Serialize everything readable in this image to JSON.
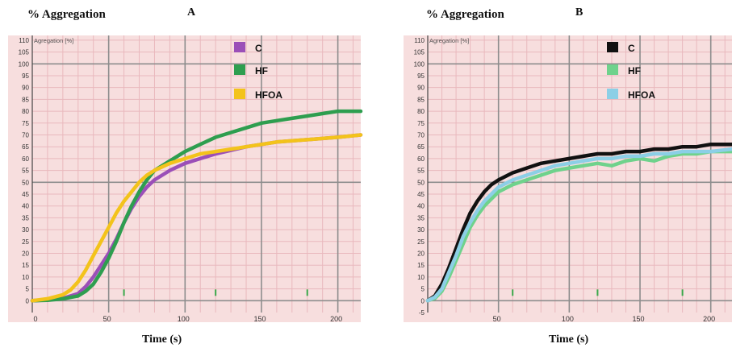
{
  "panels": [
    {
      "letter": "A",
      "ylabel_title": "% Aggregation",
      "xlabel": "Time (s)"
    },
    {
      "letter": "B",
      "ylabel_title": "% Aggregation",
      "xlabel": "Time (s)"
    }
  ],
  "colors": {
    "plot_bg": "#f7dede",
    "grid_major": "#8d8d8d",
    "grid_minor": "#e9b8bd",
    "tick_mark": "#3aa84a"
  },
  "chart_data": [
    {
      "type": "line",
      "inner_label": "Agregation [%]",
      "xlim": [
        0,
        215
      ],
      "ylim": [
        -5,
        112
      ],
      "xticks": [
        0,
        50,
        100,
        150,
        200
      ],
      "xtick_labels": [
        "0",
        "50",
        "100",
        "150",
        "200"
      ],
      "yticks": [
        110,
        105,
        100,
        95,
        90,
        85,
        80,
        75,
        70,
        65,
        60,
        55,
        50,
        45,
        40,
        35,
        30,
        25,
        20,
        15,
        10,
        5,
        0
      ],
      "ytick_labels": [
        "110",
        "105",
        "100",
        "95",
        "90",
        "85",
        "80",
        "75",
        "70",
        "65",
        "60",
        "55",
        "50",
        "45",
        "40",
        "35",
        "30",
        "25",
        "20",
        "15",
        "10",
        "5",
        "0"
      ],
      "grid": true,
      "legend_position": "top-center",
      "series": [
        {
          "name": "C",
          "color": "#9b4fb8",
          "x": [
            0,
            10,
            20,
            30,
            35,
            40,
            45,
            50,
            55,
            60,
            65,
            70,
            75,
            80,
            90,
            100,
            110,
            120,
            140,
            160,
            180,
            200,
            215
          ],
          "y": [
            0,
            0.3,
            1,
            3,
            6,
            10,
            15,
            20,
            26,
            33,
            39,
            44,
            48,
            51,
            55,
            58,
            60,
            62,
            65,
            67,
            68,
            69,
            70
          ]
        },
        {
          "name": "HF",
          "color": "#2e9e4f",
          "x": [
            0,
            10,
            20,
            30,
            35,
            40,
            45,
            50,
            55,
            60,
            65,
            70,
            75,
            80,
            90,
            100,
            110,
            120,
            130,
            140,
            150,
            160,
            170,
            180,
            190,
            200,
            215
          ],
          "y": [
            0,
            0.2,
            0.8,
            2,
            4,
            7,
            12,
            18,
            25,
            33,
            40,
            46,
            51,
            55,
            59,
            63,
            66,
            69,
            71,
            73,
            75,
            76,
            77,
            78,
            79,
            80,
            80
          ]
        },
        {
          "name": "HFOA",
          "color": "#f3c31b",
          "x": [
            0,
            10,
            20,
            25,
            30,
            35,
            40,
            45,
            50,
            55,
            60,
            65,
            70,
            75,
            80,
            90,
            100,
            110,
            120,
            140,
            160,
            180,
            200,
            215
          ],
          "y": [
            0,
            0.8,
            2.5,
            4.5,
            8,
            13,
            19,
            25,
            31,
            37,
            42,
            46,
            50,
            53,
            55,
            58,
            60,
            62,
            63,
            65,
            67,
            68,
            69,
            70
          ]
        }
      ]
    },
    {
      "type": "line",
      "inner_label": "Agregation [%]",
      "xlim": [
        0,
        215
      ],
      "ylim": [
        -5,
        112
      ],
      "xticks": [
        0,
        50,
        100,
        150,
        200
      ],
      "xtick_labels": [
        "",
        "50",
        "100",
        "150",
        "200"
      ],
      "yticks": [
        110,
        105,
        100,
        95,
        90,
        85,
        80,
        75,
        70,
        65,
        60,
        55,
        50,
        45,
        40,
        35,
        30,
        25,
        20,
        15,
        10,
        5,
        0,
        -5
      ],
      "ytick_labels": [
        "110",
        "105",
        "100",
        "95",
        "90",
        "85",
        "80",
        "75",
        "70",
        "65",
        "60",
        "55",
        "50",
        "45",
        "40",
        "35",
        "30",
        "25",
        "20",
        "15",
        "10",
        "5",
        "0",
        "-5"
      ],
      "grid": true,
      "legend_position": "top-center",
      "series": [
        {
          "name": "C",
          "color": "#111111",
          "x": [
            0,
            5,
            10,
            15,
            20,
            25,
            30,
            35,
            40,
            45,
            50,
            60,
            70,
            80,
            90,
            100,
            110,
            120,
            130,
            140,
            150,
            160,
            170,
            180,
            190,
            200,
            215
          ],
          "y": [
            0,
            2,
            7,
            14,
            22,
            30,
            37,
            42,
            46,
            49,
            51,
            54,
            56,
            58,
            59,
            60,
            61,
            62,
            62,
            63,
            63,
            64,
            64,
            65,
            65,
            66,
            66
          ]
        },
        {
          "name": "HF",
          "color": "#6fd28c",
          "x": [
            0,
            5,
            10,
            15,
            20,
            25,
            30,
            35,
            40,
            45,
            50,
            60,
            70,
            80,
            90,
            100,
            110,
            120,
            130,
            140,
            150,
            160,
            170,
            180,
            190,
            200,
            215
          ],
          "y": [
            0,
            1,
            4,
            10,
            17,
            24,
            31,
            36,
            40,
            43,
            46,
            49,
            51,
            53,
            55,
            56,
            57,
            58,
            57,
            59,
            60,
            59,
            61,
            62,
            62,
            63,
            63
          ]
        },
        {
          "name": "HFOA",
          "color": "#8ccfe6",
          "x": [
            0,
            5,
            10,
            15,
            20,
            25,
            30,
            35,
            40,
            45,
            50,
            60,
            70,
            80,
            90,
            100,
            110,
            120,
            130,
            140,
            150,
            160,
            170,
            180,
            190,
            200,
            215
          ],
          "y": [
            0,
            1.5,
            5,
            12,
            19,
            27,
            33,
            38,
            42,
            45,
            48,
            51,
            53,
            55,
            57,
            58,
            59,
            60,
            60,
            61,
            61,
            62,
            62,
            63,
            63,
            63,
            64
          ]
        }
      ]
    }
  ]
}
